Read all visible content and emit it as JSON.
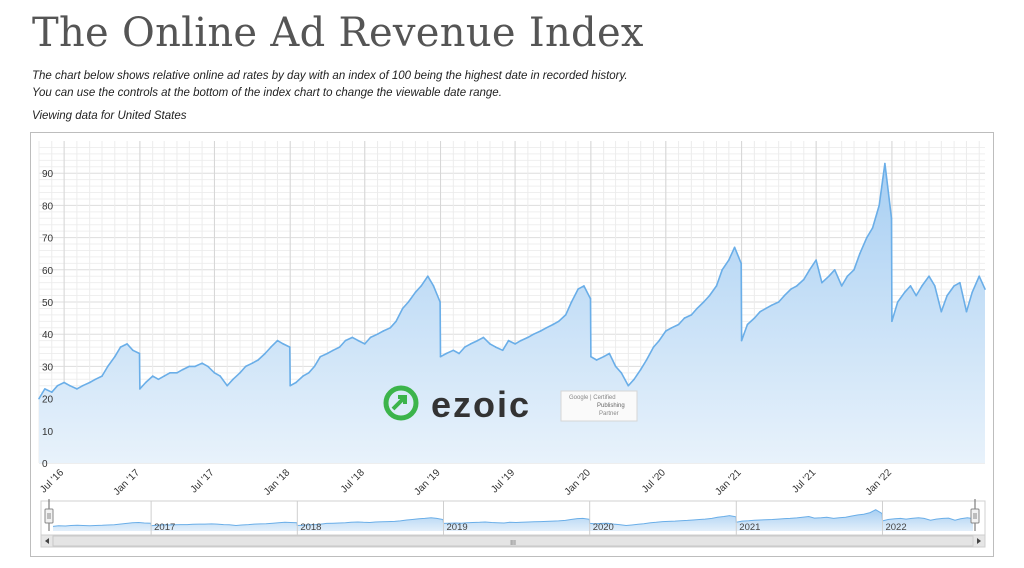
{
  "page": {
    "title": "The Online Ad Revenue Index",
    "description_line1": "The chart below shows relative online ad rates by day with an index of 100 being the highest date in recorded history.",
    "description_line2": "You can use the controls at the bottom of the index chart to change the viewable date range.",
    "viewing": "Viewing data for United States"
  },
  "watermark": {
    "brand": "ezoic",
    "badge_line1": "Google | Certified",
    "badge_line2": "Publishing",
    "badge_line3": "Partner"
  },
  "navigator": {
    "year_labels": [
      "2017",
      "2018",
      "2019",
      "2020",
      "2021",
      "2022"
    ],
    "scrollbar_grip": "III"
  },
  "colors": {
    "line": "#6aaee8",
    "fill_top": "#a8cff3",
    "fill_bottom": "#e8f2fb",
    "grid": "#e4e4e4",
    "brand_green": "#3cb44b",
    "brand_dark": "#333333"
  },
  "chart_data": {
    "type": "area",
    "title": "",
    "xlabel": "",
    "ylabel": "",
    "ylim": [
      0,
      100
    ],
    "yticks": [
      0,
      10,
      20,
      30,
      40,
      50,
      60,
      70,
      80,
      90
    ],
    "xlim": [
      "2016-05-01",
      "2022-08-15"
    ],
    "xticks": [
      {
        "date": "2016-07-01",
        "label": "Jul '16"
      },
      {
        "date": "2017-01-01",
        "label": "Jan '17"
      },
      {
        "date": "2017-07-01",
        "label": "Jul '17"
      },
      {
        "date": "2018-01-01",
        "label": "Jan '18"
      },
      {
        "date": "2018-07-01",
        "label": "Jul '18"
      },
      {
        "date": "2019-01-01",
        "label": "Jan '19"
      },
      {
        "date": "2019-07-01",
        "label": "Jul '19"
      },
      {
        "date": "2020-01-01",
        "label": "Jan '20"
      },
      {
        "date": "2020-07-01",
        "label": "Jul '20"
      },
      {
        "date": "2021-01-01",
        "label": "Jan '21"
      },
      {
        "date": "2021-07-01",
        "label": "Jul '21"
      },
      {
        "date": "2022-01-01",
        "label": "Jan '22"
      }
    ],
    "grid": true,
    "legend": "none",
    "series": [
      {
        "x": [
          "2016-05-01",
          "2016-05-15",
          "2016-06-01",
          "2016-06-15",
          "2016-07-01",
          "2016-07-15",
          "2016-08-01",
          "2016-08-15",
          "2016-09-01",
          "2016-09-15",
          "2016-10-01",
          "2016-10-15",
          "2016-11-01",
          "2016-11-15",
          "2016-12-01",
          "2016-12-15",
          "2016-12-31",
          "2017-01-01",
          "2017-01-15",
          "2017-02-01",
          "2017-02-15",
          "2017-03-01",
          "2017-03-15",
          "2017-04-01",
          "2017-04-15",
          "2017-05-01",
          "2017-05-15",
          "2017-06-01",
          "2017-06-15",
          "2017-07-01",
          "2017-07-15",
          "2017-08-01",
          "2017-08-15",
          "2017-09-01",
          "2017-09-15",
          "2017-10-01",
          "2017-10-15",
          "2017-11-01",
          "2017-11-15",
          "2017-12-01",
          "2017-12-15",
          "2017-12-31",
          "2018-01-01",
          "2018-01-15",
          "2018-02-01",
          "2018-02-15",
          "2018-03-01",
          "2018-03-15",
          "2018-04-01",
          "2018-04-15",
          "2018-05-01",
          "2018-05-15",
          "2018-06-01",
          "2018-06-15",
          "2018-07-01",
          "2018-07-15",
          "2018-08-01",
          "2018-08-15",
          "2018-09-01",
          "2018-09-15",
          "2018-10-01",
          "2018-10-15",
          "2018-11-01",
          "2018-11-15",
          "2018-12-01",
          "2018-12-15",
          "2018-12-31",
          "2019-01-01",
          "2019-01-15",
          "2019-02-01",
          "2019-02-15",
          "2019-03-01",
          "2019-03-15",
          "2019-04-01",
          "2019-04-15",
          "2019-05-01",
          "2019-05-15",
          "2019-06-01",
          "2019-06-15",
          "2019-07-01",
          "2019-07-15",
          "2019-08-01",
          "2019-08-15",
          "2019-09-01",
          "2019-09-15",
          "2019-10-01",
          "2019-10-15",
          "2019-11-01",
          "2019-11-15",
          "2019-12-01",
          "2019-12-15",
          "2019-12-31",
          "2020-01-01",
          "2020-01-15",
          "2020-02-01",
          "2020-02-15",
          "2020-03-01",
          "2020-03-15",
          "2020-04-01",
          "2020-04-15",
          "2020-05-01",
          "2020-05-15",
          "2020-06-01",
          "2020-06-15",
          "2020-07-01",
          "2020-07-15",
          "2020-08-01",
          "2020-08-15",
          "2020-09-01",
          "2020-09-15",
          "2020-10-01",
          "2020-10-15",
          "2020-11-01",
          "2020-11-15",
          "2020-12-01",
          "2020-12-15",
          "2020-12-31",
          "2021-01-01",
          "2021-01-15",
          "2021-02-01",
          "2021-02-15",
          "2021-03-01",
          "2021-03-15",
          "2021-04-01",
          "2021-04-15",
          "2021-05-01",
          "2021-05-15",
          "2021-06-01",
          "2021-06-15",
          "2021-07-01",
          "2021-07-15",
          "2021-08-01",
          "2021-08-15",
          "2021-09-01",
          "2021-09-15",
          "2021-10-01",
          "2021-10-15",
          "2021-11-01",
          "2021-11-15",
          "2021-12-01",
          "2021-12-15",
          "2021-12-31",
          "2022-01-01",
          "2022-01-15",
          "2022-02-01",
          "2022-02-15",
          "2022-03-01",
          "2022-03-15",
          "2022-04-01",
          "2022-04-15",
          "2022-05-01",
          "2022-05-15",
          "2022-06-01",
          "2022-06-15",
          "2022-07-01",
          "2022-07-15",
          "2022-08-01",
          "2022-08-15"
        ],
        "y": [
          20,
          23,
          22,
          24,
          25,
          24,
          23,
          24,
          25,
          26,
          27,
          30,
          33,
          36,
          37,
          35,
          34,
          23,
          25,
          27,
          26,
          27,
          28,
          28,
          29,
          30,
          30,
          31,
          30,
          28,
          27,
          24,
          26,
          28,
          30,
          31,
          32,
          34,
          36,
          38,
          37,
          36,
          24,
          25,
          27,
          28,
          30,
          33,
          34,
          35,
          36,
          38,
          39,
          38,
          37,
          39,
          40,
          41,
          42,
          44,
          48,
          50,
          53,
          55,
          58,
          55,
          50,
          33,
          34,
          35,
          34,
          36,
          37,
          38,
          39,
          37,
          36,
          35,
          38,
          37,
          38,
          39,
          40,
          41,
          42,
          43,
          44,
          46,
          50,
          54,
          55,
          51,
          33,
          32,
          33,
          34,
          30,
          28,
          24,
          26,
          29,
          32,
          36,
          38,
          41,
          42,
          43,
          45,
          46,
          48,
          50,
          52,
          55,
          60,
          63,
          67,
          62,
          38,
          43,
          45,
          47,
          48,
          49,
          50,
          52,
          54,
          55,
          57,
          60,
          63,
          56,
          58,
          60,
          55,
          58,
          60,
          65,
          70,
          73,
          80,
          93,
          76,
          44,
          50,
          53,
          55,
          52,
          55,
          58,
          55,
          47,
          52,
          55,
          56,
          47,
          53,
          58,
          54
        ]
      }
    ]
  }
}
